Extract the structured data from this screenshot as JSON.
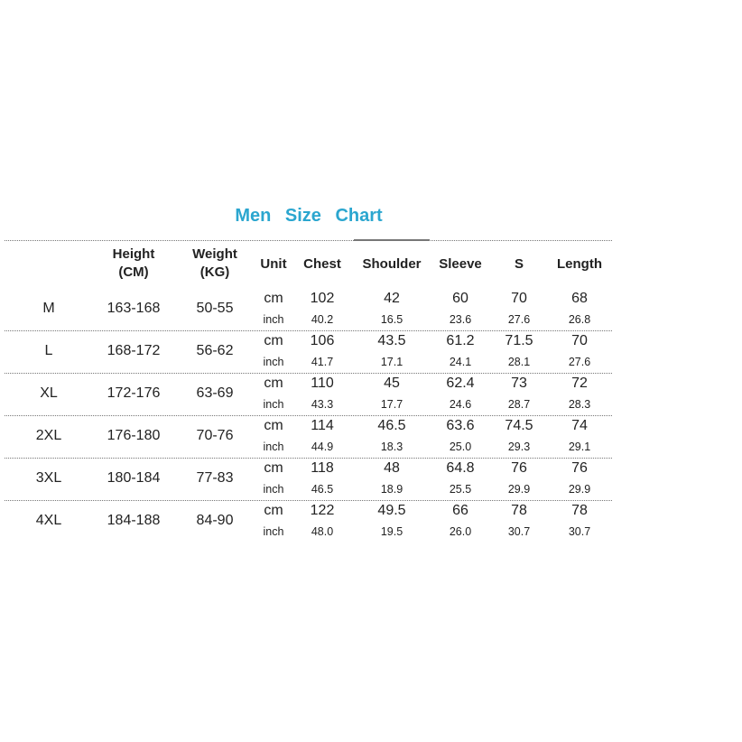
{
  "title": "Men  Size  Chart",
  "colors": {
    "title": "#2ba6cf",
    "text": "#222222",
    "rule": "#777777"
  },
  "headers": [
    "",
    "Height\n(CM)",
    "Weight\n(KG)",
    "Unit",
    "Chest",
    "Shoulder",
    "Sleeve",
    "S",
    "Length"
  ],
  "rows": [
    {
      "size": "M",
      "height": "163-168",
      "weight": "50-55",
      "cm": [
        "102",
        "42",
        "60",
        "70",
        "68"
      ],
      "inch": [
        "40.2",
        "16.5",
        "23.6",
        "27.6",
        "26.8"
      ]
    },
    {
      "size": "L",
      "height": "168-172",
      "weight": "56-62",
      "cm": [
        "106",
        "43.5",
        "61.2",
        "71.5",
        "70"
      ],
      "inch": [
        "41.7",
        "17.1",
        "24.1",
        "28.1",
        "27.6"
      ]
    },
    {
      "size": "XL",
      "height": "172-176",
      "weight": "63-69",
      "cm": [
        "110",
        "45",
        "62.4",
        "73",
        "72"
      ],
      "inch": [
        "43.3",
        "17.7",
        "24.6",
        "28.7",
        "28.3"
      ]
    },
    {
      "size": "2XL",
      "height": "176-180",
      "weight": "70-76",
      "cm": [
        "114",
        "46.5",
        "63.6",
        "74.5",
        "74"
      ],
      "inch": [
        "44.9",
        "18.3",
        "25.0",
        "29.3",
        "29.1"
      ]
    },
    {
      "size": "3XL",
      "height": "180-184",
      "weight": "77-83",
      "cm": [
        "118",
        "48",
        "64.8",
        "76",
        "76"
      ],
      "inch": [
        "46.5",
        "18.9",
        "25.5",
        "29.9",
        "29.9"
      ]
    },
    {
      "size": "4XL",
      "height": "184-188",
      "weight": "84-90",
      "cm": [
        "122",
        "49.5",
        "66",
        "78",
        "78"
      ],
      "inch": [
        "48.0",
        "19.5",
        "26.0",
        "30.7",
        "30.7"
      ]
    }
  ],
  "units": {
    "cm": "cm",
    "inch": "inch"
  }
}
